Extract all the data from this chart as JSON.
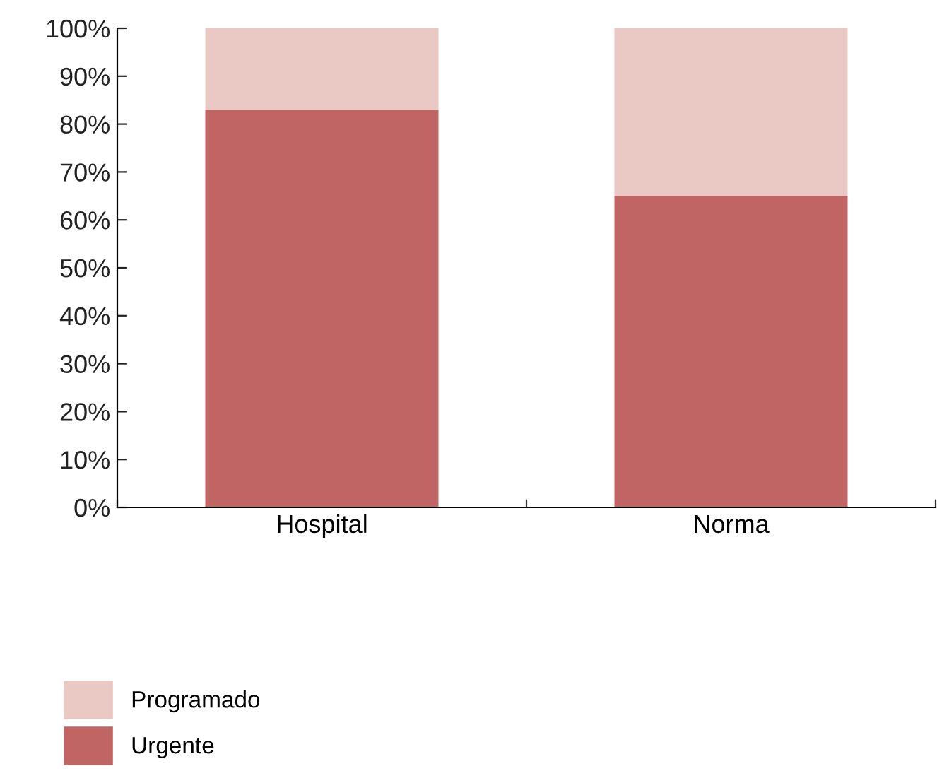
{
  "chart_data": {
    "type": "bar",
    "stacked": true,
    "categories": [
      "Hospital",
      "Norma"
    ],
    "series": [
      {
        "name": "Urgente",
        "color": "#c06464",
        "values": [
          83,
          65
        ]
      },
      {
        "name": "Programado",
        "color": "#eac8c3",
        "values": [
          17,
          35
        ]
      }
    ],
    "ylim": [
      0,
      100
    ],
    "yticks": [
      {
        "value": 0,
        "label": "0%"
      },
      {
        "value": 10,
        "label": "10%"
      },
      {
        "value": 20,
        "label": "20%"
      },
      {
        "value": 30,
        "label": "30%"
      },
      {
        "value": 40,
        "label": "40%"
      },
      {
        "value": 50,
        "label": "50%"
      },
      {
        "value": 60,
        "label": "60%"
      },
      {
        "value": 70,
        "label": "70%"
      },
      {
        "value": 80,
        "label": "80%"
      },
      {
        "value": 90,
        "label": "90%"
      },
      {
        "value": 100,
        "label": "100%"
      }
    ],
    "grid": false,
    "legend": "bottom left"
  }
}
